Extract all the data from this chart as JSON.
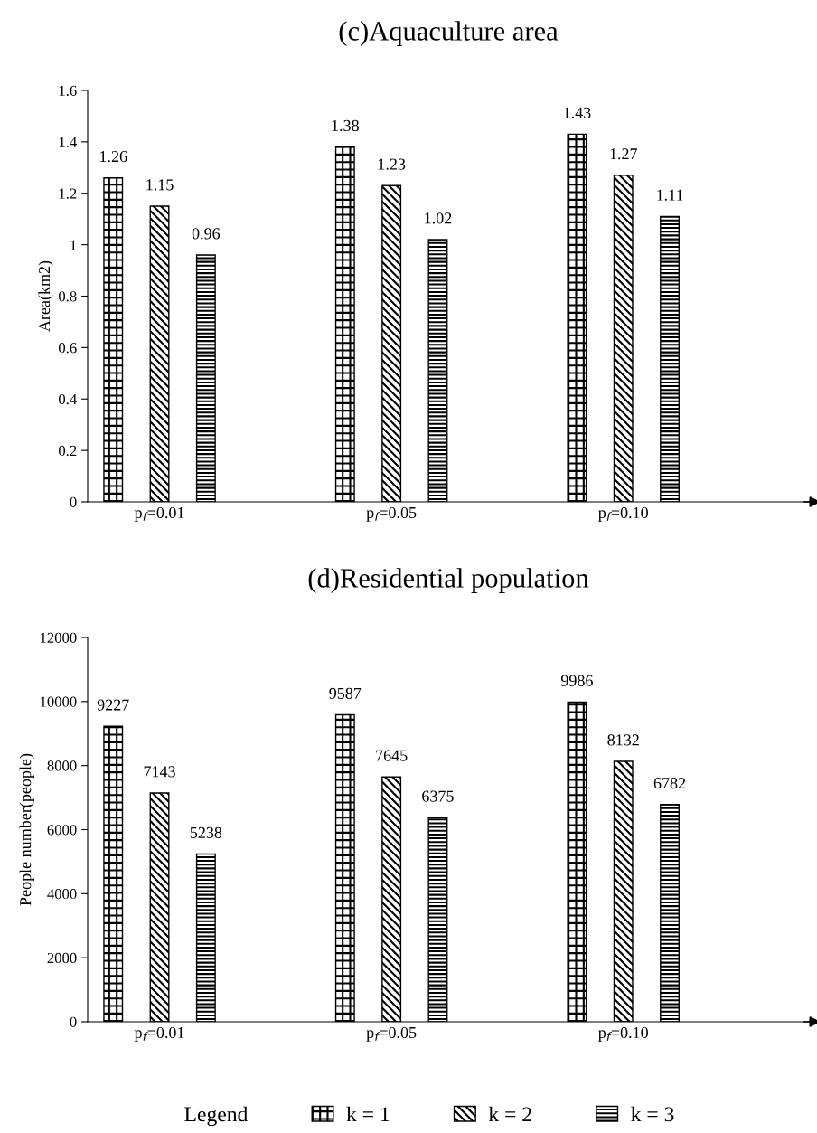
{
  "chart_data": [
    {
      "type": "bar",
      "title": "(c)Aquaculture area",
      "ylabel": "Area(km2)",
      "categories": [
        "p$_{f}$=0.01",
        "p$_{f}$=0.05",
        "p$_{f}$=0.10"
      ],
      "series": [
        {
          "color": "#000000",
          "values": [
            1.26,
            1.38,
            1.43
          ]
        },
        {
          "color": "#000000",
          "values": [
            1.15,
            1.23,
            1.27
          ]
        },
        {
          "color": "#000000",
          "values": [
            0.96,
            1.02,
            1.11
          ]
        }
      ],
      "ylim": [
        0,
        1.6
      ],
      "yticks": [
        0,
        0.2,
        0.4,
        0.6,
        0.8,
        1,
        1.2,
        1.4,
        1.6
      ],
      "data_labels": true,
      "grid": false,
      "legend": false
    },
    {
      "type": "bar",
      "title": "(d)Residential population",
      "ylabel": "People number(people)",
      "categories": [
        "p$_{f}$=0.01",
        "p$_{f}$=0.05",
        "p$_{f}$=0.10"
      ],
      "series": [
        {
          "name": "k = 1",
          "color": "#000000",
          "values": [
            9227,
            9587,
            9986
          ]
        },
        {
          "name": "k = 2",
          "color": "#000000",
          "values": [
            7143,
            7645,
            8132
          ]
        },
        {
          "name": "k = 3",
          "color": "#000000",
          "values": [
            5238,
            6375,
            6782
          ]
        }
      ],
      "ylim": [
        0,
        12000
      ],
      "yticks": [
        0,
        2000,
        4000,
        6000,
        8000,
        10000,
        12000
      ],
      "data_labels": true,
      "grid": false,
      "legend": "bottom",
      "legend_title": "Legend"
    }
  ]
}
